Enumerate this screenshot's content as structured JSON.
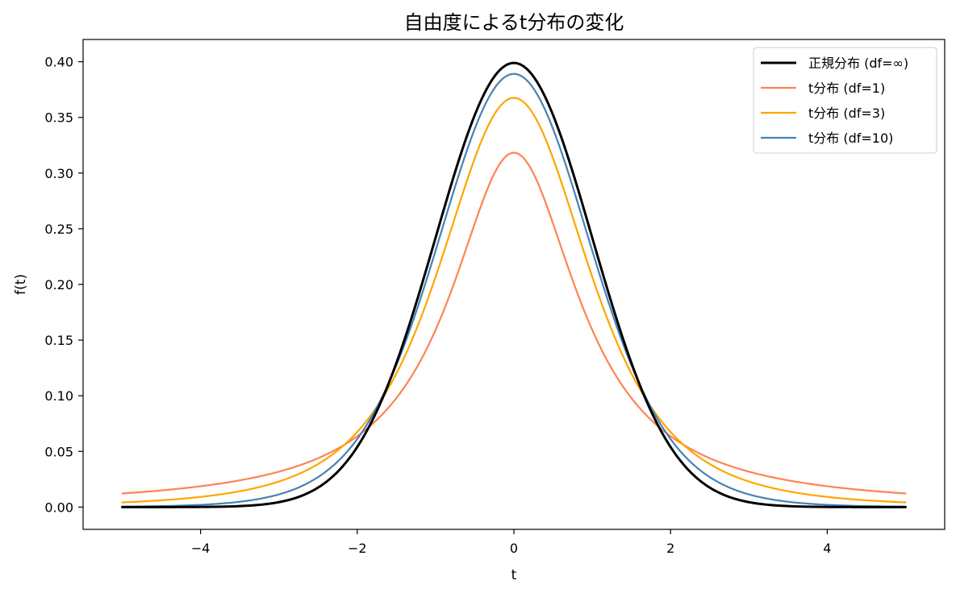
{
  "chart_data": {
    "type": "line",
    "title": "自由度によるt分布の変化",
    "xlabel": "t",
    "ylabel": "f(t)",
    "xlim": [
      -5.5,
      5.5
    ],
    "ylim": [
      -0.02,
      0.42
    ],
    "x_range": [
      -5,
      5
    ],
    "xticks": [
      -4,
      -2,
      0,
      2,
      4
    ],
    "xtick_labels": [
      "−4",
      "−2",
      "0",
      "2",
      "4"
    ],
    "yticks": [
      0.0,
      0.05,
      0.1,
      0.15,
      0.2,
      0.25,
      0.3,
      0.35,
      0.4
    ],
    "ytick_labels": [
      "0.00",
      "0.05",
      "0.10",
      "0.15",
      "0.20",
      "0.25",
      "0.30",
      "0.35",
      "0.40"
    ],
    "grid": false,
    "legend_position": "top-right",
    "series": [
      {
        "name": "正規分布 (df=∞)",
        "df": "inf",
        "color": "#000000",
        "width": 3
      },
      {
        "name": "t分布 (df=1)",
        "df": 1,
        "color": "#ff8254",
        "width": 2.2
      },
      {
        "name": "t分布 (df=3)",
        "df": 3,
        "color": "#ffa500",
        "width": 2.2
      },
      {
        "name": "t分布 (df=10)",
        "df": 10,
        "color": "#4682b4",
        "width": 2.2
      }
    ]
  }
}
